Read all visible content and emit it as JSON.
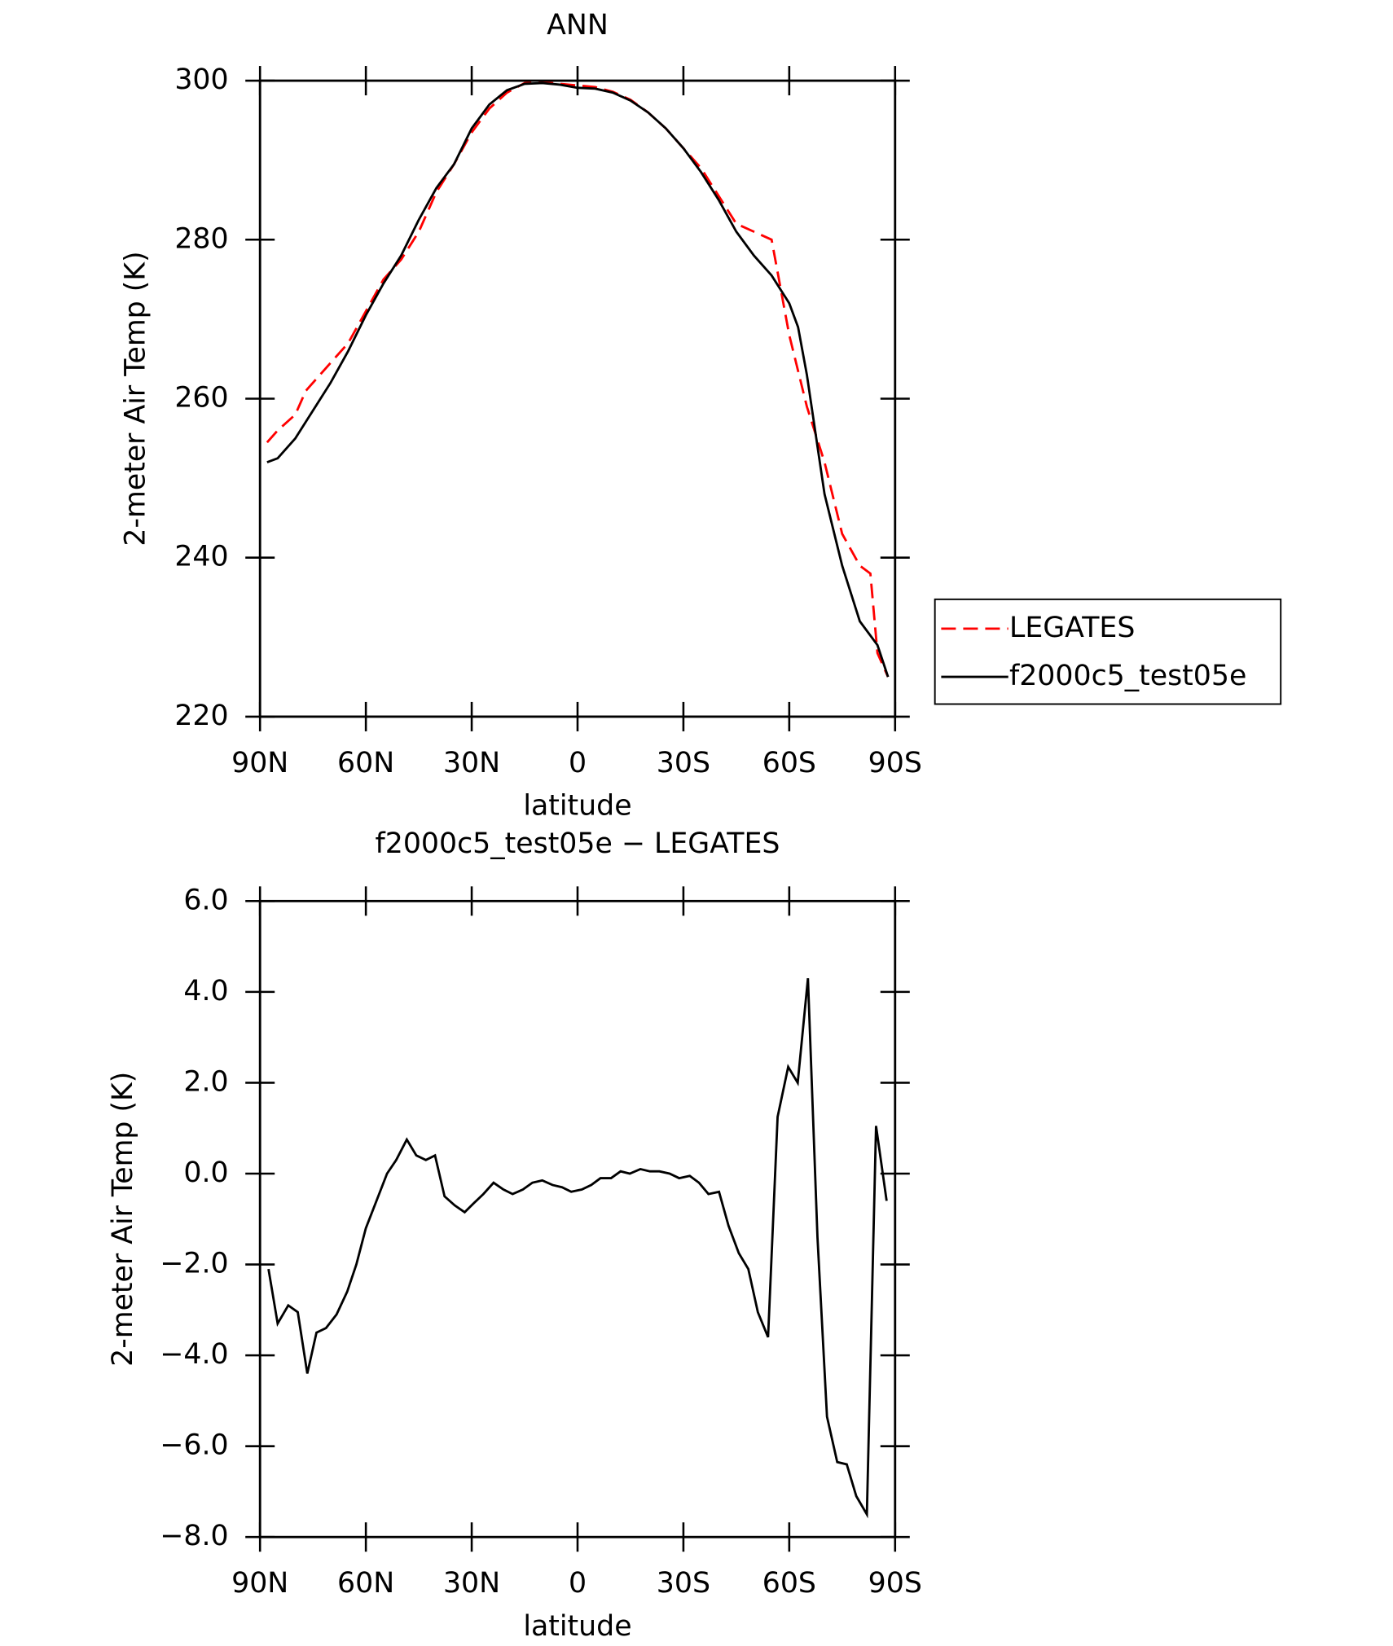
{
  "chart_data": [
    {
      "type": "line",
      "title": "ANN",
      "xlabel": "latitude",
      "ylabel": "2-meter Air Temp (K)",
      "xlim": [
        90,
        -90
      ],
      "xticks": [
        {
          "value": 90,
          "label": "90N"
        },
        {
          "value": 60,
          "label": "60N"
        },
        {
          "value": 30,
          "label": "30N"
        },
        0,
        {
          "value": -30,
          "label": "30S"
        },
        {
          "value": -60,
          "label": "60S"
        },
        {
          "value": -90,
          "label": "90S"
        }
      ],
      "ylim": [
        220,
        300
      ],
      "yticks": [
        220,
        240,
        260,
        280,
        300
      ],
      "legend": "right",
      "series": [
        {
          "name": "LEGATES",
          "color": "#ff0000",
          "dash": true,
          "x": [
            88,
            85,
            80,
            77,
            70,
            65,
            60,
            55,
            50,
            45,
            40,
            35,
            30,
            25,
            20,
            15,
            10,
            5,
            0,
            -5,
            -10,
            -15,
            -20,
            -25,
            -30,
            -35,
            -40,
            -45,
            -50,
            -55,
            -60,
            -65,
            -70,
            -75,
            -80,
            -83,
            -85,
            -88
          ],
          "values": [
            254.5,
            256,
            258,
            261,
            264.5,
            267,
            271,
            275,
            277.5,
            281,
            286,
            289.5,
            293.5,
            296.5,
            298.5,
            299.7,
            299.8,
            299.6,
            299.4,
            299.2,
            298.6,
            297.6,
            296,
            294,
            291.5,
            289,
            285.5,
            282,
            281,
            280,
            268,
            259,
            252,
            243,
            239,
            238,
            228,
            225
          ]
        },
        {
          "name": "f2000c5_test05e",
          "color": "#000000",
          "dash": false,
          "x": [
            88,
            85,
            80,
            75,
            70,
            65,
            60,
            55,
            50,
            45,
            40,
            35,
            30,
            25,
            20,
            15,
            10,
            5,
            0,
            -5,
            -10,
            -15,
            -20,
            -25,
            -30,
            -35,
            -40,
            -45,
            -50,
            -55,
            -60,
            -62.5,
            -65,
            -70,
            -75,
            -80,
            -85,
            -88
          ],
          "values": [
            252,
            252.5,
            255,
            258.5,
            262,
            266,
            270.5,
            274.5,
            278,
            282.5,
            286.5,
            289.5,
            294,
            297,
            298.8,
            299.6,
            299.7,
            299.5,
            299.1,
            299,
            298.5,
            297.5,
            296,
            294,
            291.5,
            288.5,
            285,
            281,
            278,
            275.5,
            272,
            269,
            263,
            248,
            239,
            232,
            229,
            225
          ]
        }
      ]
    },
    {
      "type": "line",
      "title": "f2000c5_test05e − LEGATES",
      "xlabel": "latitude",
      "ylabel": "2-meter Air Temp (K)",
      "xlim": [
        90,
        -90
      ],
      "xticks": [
        {
          "value": 90,
          "label": "90N"
        },
        {
          "value": 60,
          "label": "60N"
        },
        {
          "value": 30,
          "label": "30N"
        },
        0,
        {
          "value": -30,
          "label": "30S"
        },
        {
          "value": -60,
          "label": "60S"
        },
        {
          "value": -90,
          "label": "90S"
        }
      ],
      "ylim": [
        -8,
        6
      ],
      "yticks": [
        {
          "value": -8,
          "label": "−8.0"
        },
        {
          "value": -6,
          "label": "−6.0"
        },
        {
          "value": -4,
          "label": "−4.0"
        },
        {
          "value": -2,
          "label": "−2.0"
        },
        {
          "value": 0,
          "label": "0.0"
        },
        {
          "value": 2,
          "label": "2.0"
        },
        {
          "value": 4,
          "label": "4.0"
        },
        {
          "value": 6,
          "label": "6.0"
        }
      ],
      "series": [
        {
          "color": "#000000",
          "x": [
            87.6,
            85,
            82,
            79.3,
            76.6,
            74,
            71.3,
            68.3,
            65.3,
            62.7,
            60,
            57,
            54,
            51.4,
            48.4,
            45.7,
            43,
            40.4,
            37.7,
            34.8,
            32,
            29.4,
            26.7,
            23.8,
            21,
            18.4,
            15.5,
            12.8,
            10,
            7.1,
            4.4,
            1.8,
            -1.2,
            -3.9,
            -6.5,
            -9.5,
            -12.2,
            -14.8,
            -17.8,
            -20.5,
            -23.2,
            -26.1,
            -28.8,
            -31.8,
            -34.4,
            -37.1,
            -40.1,
            -42.8,
            -45.7,
            -48.4,
            -51.1,
            -54,
            -56.7,
            -59.7,
            -62.4,
            -65.3,
            -68,
            -70.7,
            -73.6,
            -76.3,
            -79,
            -82,
            -84.6,
            -87.6
          ],
          "values": [
            -2.1,
            -3.3,
            -2.9,
            -3.05,
            -4.4,
            -3.5,
            -3.4,
            -3.1,
            -2.6,
            -2.0,
            -1.2,
            -0.6,
            0.0,
            0.3,
            0.75,
            0.4,
            0.3,
            0.4,
            -0.5,
            -0.7,
            -0.85,
            -0.65,
            -0.45,
            -0.2,
            -0.35,
            -0.45,
            -0.35,
            -0.2,
            -0.15,
            -0.25,
            -0.3,
            -0.4,
            -0.35,
            -0.25,
            -0.1,
            -0.1,
            0.05,
            0.0,
            0.1,
            0.05,
            0.05,
            0.0,
            -0.1,
            -0.05,
            -0.2,
            -0.45,
            -0.4,
            -1.15,
            -1.75,
            -2.1,
            -3.05,
            -3.6,
            1.25,
            2.35,
            2.0,
            4.3,
            -1.4,
            -5.35,
            -6.35,
            -6.4,
            -7.1,
            -7.5,
            1.05,
            -0.6
          ]
        }
      ]
    }
  ]
}
